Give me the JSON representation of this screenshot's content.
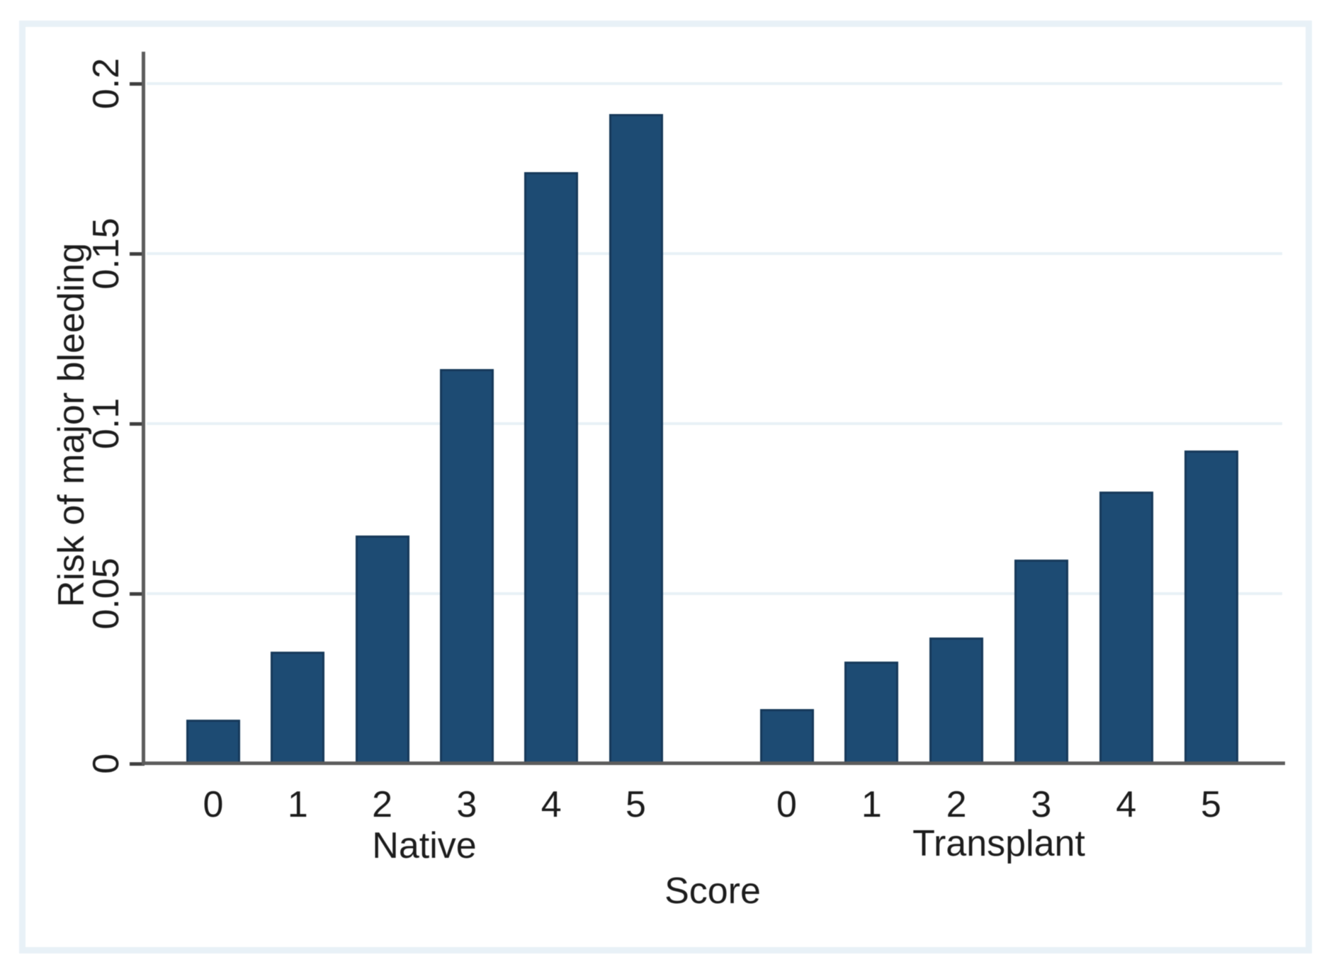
{
  "figure": {
    "frame_color": "#e8f1f7",
    "plot_background": "#ffffff",
    "bar_fill": "#1d4b73",
    "bar_edge": "#16395a",
    "axis_color": "#5c5c5c",
    "tick_color": "#3f3f3f",
    "grid_color": "#e8f1f6",
    "text_color": "#1c1c1c"
  },
  "chart_data": {
    "type": "bar",
    "title": "",
    "xlabel": "Score",
    "ylabel": "Risk of major bleeding",
    "ylim": [
      0,
      0.2
    ],
    "grid": "horizontal",
    "legend": "none",
    "yticks": [
      {
        "value": 0,
        "label": "0"
      },
      {
        "value": 0.05,
        "label": "0.05"
      },
      {
        "value": 0.1,
        "label": "0.1"
      },
      {
        "value": 0.15,
        "label": "0.15"
      },
      {
        "value": 0.2,
        "label": "0.2"
      }
    ],
    "groups": [
      {
        "label": "Native",
        "categories": [
          "0",
          "1",
          "2",
          "3",
          "4",
          "5"
        ],
        "values": [
          0.013,
          0.033,
          0.067,
          0.116,
          0.174,
          0.191
        ]
      },
      {
        "label": "Transplant",
        "categories": [
          "0",
          "1",
          "2",
          "3",
          "4",
          "5"
        ],
        "values": [
          0.016,
          0.03,
          0.037,
          0.06,
          0.08,
          0.092
        ]
      }
    ]
  }
}
